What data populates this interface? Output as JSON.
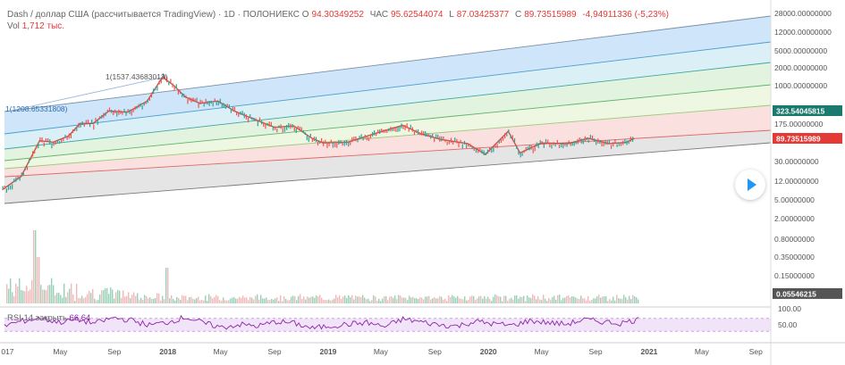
{
  "legend": {
    "title": "Dash / доллар США (рассчитывается TradingView) · 1D · ПОЛОНИЕКС",
    "open_label": "О",
    "open": "94.30349252",
    "high_label": "ЧАС",
    "high": "95.62544074",
    "low_label": "L",
    "low": "87.03425377",
    "close_label": "C",
    "close": "89.73515989",
    "change": "-4,94911336 (-5,23%)"
  },
  "volume": {
    "label": "Vol",
    "value": "1,712 тыс."
  },
  "rsi": {
    "label": "RSI 14 закрыть",
    "value": "66,64"
  },
  "chart_data": {
    "type": "candlestick",
    "title": "Dash / доллар США (рассчитывается TradingView) · 1D · ПОЛОНИЕКС",
    "yscale": "log",
    "ylim": [
      2.2,
      28000
    ],
    "price_ticks": [
      "28000.00000000",
      "12000.00000000",
      "5000.00000000",
      "2000.00000000",
      "1000.00000000",
      "175.00000000",
      "30.00000000",
      "12.00000000",
      "5.00000000",
      "2.00000000",
      "0.80000000",
      "0.35000000",
      "0.15000000"
    ],
    "price_tick_values": [
      28000,
      12000,
      5000,
      2000,
      1000,
      175,
      30,
      12,
      5,
      2,
      0.8,
      0.35,
      0.15
    ],
    "x_ticks": [
      "017",
      "May",
      "Sep",
      "2018",
      "May",
      "Sep",
      "2019",
      "May",
      "Sep",
      "2020",
      "May",
      "Sep",
      "2021",
      "May",
      "Sep"
    ],
    "x_tick_dates": [
      "2017-01-01",
      "2017-05-01",
      "2017-09-01",
      "2018-01-01",
      "2018-05-01",
      "2018-09-01",
      "2019-01-01",
      "2019-05-01",
      "2019-09-01",
      "2020-01-01",
      "2020-05-01",
      "2020-09-01",
      "2021-01-01",
      "2021-05-01",
      "2021-09-01"
    ],
    "price_series": [
      {
        "date": "2016-12-20",
        "close": 8
      },
      {
        "date": "2017-02-01",
        "close": 15
      },
      {
        "date": "2017-03-15",
        "close": 80
      },
      {
        "date": "2017-04-15",
        "close": 75
      },
      {
        "date": "2017-05-20",
        "close": 100
      },
      {
        "date": "2017-06-15",
        "close": 180
      },
      {
        "date": "2017-07-15",
        "close": 180
      },
      {
        "date": "2017-08-20",
        "close": 320
      },
      {
        "date": "2017-10-01",
        "close": 300
      },
      {
        "date": "2017-11-15",
        "close": 500
      },
      {
        "date": "2017-12-20",
        "close": 1400
      },
      {
        "date": "2018-01-15",
        "close": 1000
      },
      {
        "date": "2018-02-10",
        "close": 600
      },
      {
        "date": "2018-03-15",
        "close": 450
      },
      {
        "date": "2018-04-25",
        "close": 500
      },
      {
        "date": "2018-06-01",
        "close": 320
      },
      {
        "date": "2018-07-15",
        "close": 220
      },
      {
        "date": "2018-09-01",
        "close": 150
      },
      {
        "date": "2018-10-15",
        "close": 160
      },
      {
        "date": "2018-11-25",
        "close": 90
      },
      {
        "date": "2018-12-20",
        "close": 72
      },
      {
        "date": "2019-02-15",
        "close": 75
      },
      {
        "date": "2019-04-15",
        "close": 110
      },
      {
        "date": "2019-06-20",
        "close": 165
      },
      {
        "date": "2019-08-01",
        "close": 110
      },
      {
        "date": "2019-09-15",
        "close": 85
      },
      {
        "date": "2019-11-15",
        "close": 70
      },
      {
        "date": "2019-12-25",
        "close": 42
      },
      {
        "date": "2020-02-15",
        "close": 125
      },
      {
        "date": "2020-03-13",
        "close": 45
      },
      {
        "date": "2020-05-01",
        "close": 72
      },
      {
        "date": "2020-07-01",
        "close": 70
      },
      {
        "date": "2020-08-15",
        "close": 90
      },
      {
        "date": "2020-10-01",
        "close": 70
      },
      {
        "date": "2020-11-10",
        "close": 74
      },
      {
        "date": "2020-11-28",
        "close": 89.74
      }
    ],
    "pitchfork": {
      "anchor_label_1": "1(1537.43683013)",
      "anchor_value_1": 1537.43683013,
      "anchor_label_2": "1(1208.65331808)",
      "anchor_value_2": 1208.65331808,
      "band_colors": [
        "#bfdcf7",
        "#cdeaf3",
        "#d8efd4",
        "#e8f4d8",
        "#f9d5d5",
        "#dcdcdc"
      ]
    },
    "price_tags": [
      {
        "value_label": "323.54045815",
        "value": 323.54045815,
        "color": "#1a7a6e"
      },
      {
        "value_label": "89.73515989",
        "value": 89.73515989,
        "color": "#e53935"
      },
      {
        "value_label": "0.05546215",
        "value": 0.05546215,
        "color": "#555555"
      }
    ],
    "rsi_ticks": [
      "100.00",
      "50.00"
    ],
    "rsi_tick_values": [
      100,
      50
    ],
    "rsi_series": [
      48,
      62,
      71,
      58,
      66,
      55,
      72,
      64,
      49,
      58,
      74,
      55,
      42,
      51,
      46,
      60,
      55,
      39,
      47,
      52,
      57,
      44,
      68,
      59,
      50,
      46,
      61,
      53,
      48,
      63,
      57,
      52,
      66,
      60,
      55,
      66.64
    ]
  }
}
